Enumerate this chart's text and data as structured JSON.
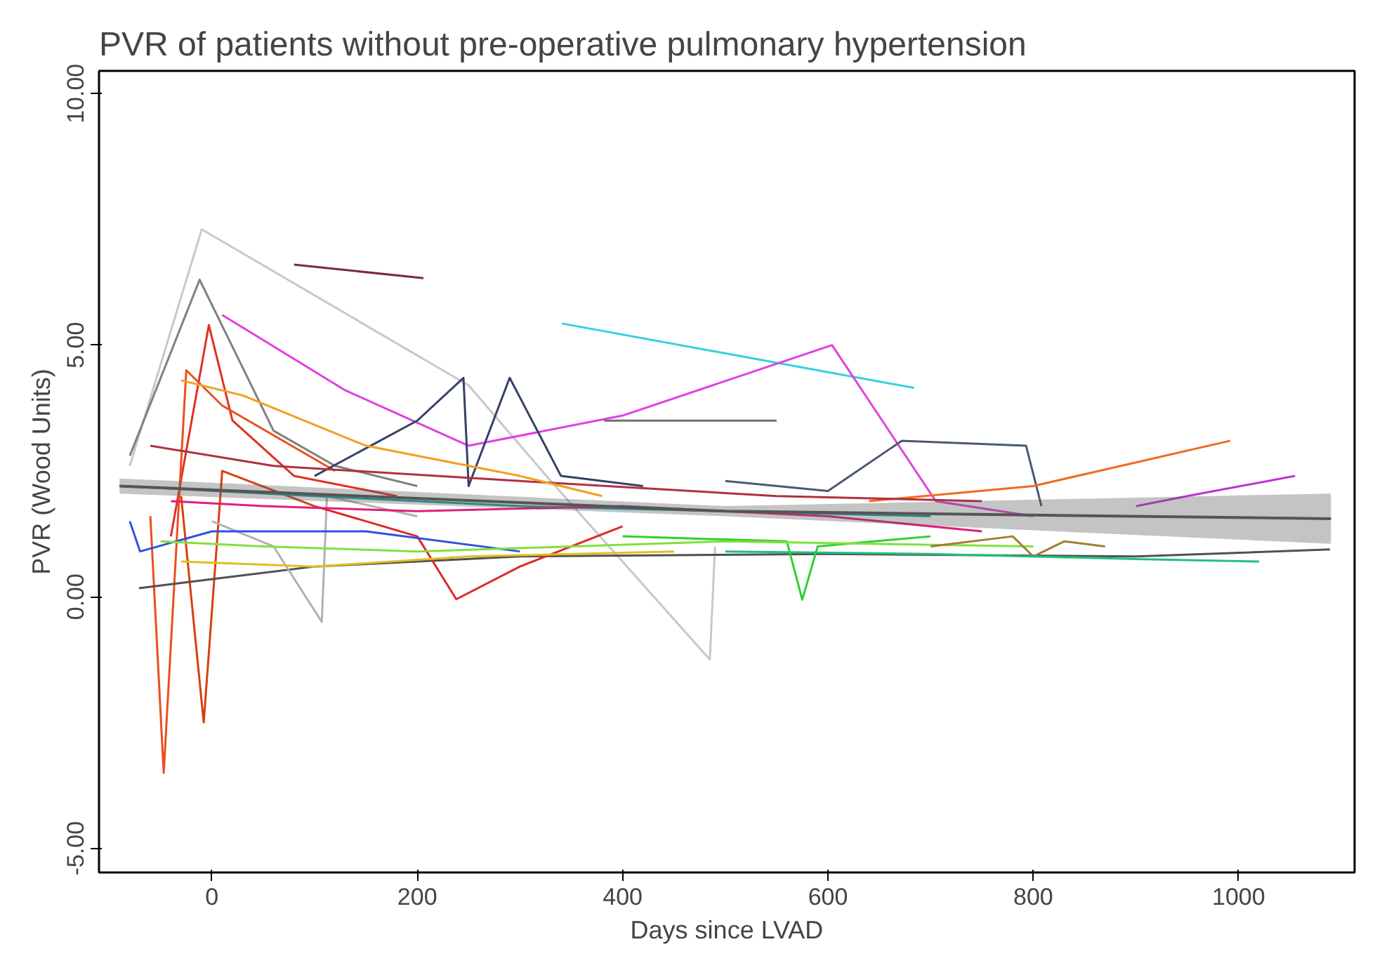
{
  "chart_data": {
    "type": "line",
    "title": "PVR of patients without pre-operative pulmonary hypertension",
    "xlabel": "Days since LVAD",
    "ylabel": "PVR (Wood Units)",
    "xlim": [
      -110,
      1113
    ],
    "ylim": [
      -5.48,
      10.45
    ],
    "xticks": [
      0,
      200,
      400,
      600,
      800,
      1000
    ],
    "yticks": [
      {
        "value": -5,
        "label": "-5.00"
      },
      {
        "value": 0,
        "label": "0.00"
      },
      {
        "value": 5,
        "label": "5.00"
      },
      {
        "value": 10,
        "label": "10.00"
      }
    ],
    "grid": false,
    "marker": "none",
    "line_style": "solid",
    "series": [
      {
        "color": "#c8c8c8",
        "x": [
          -80,
          -10,
          250,
          330,
          485,
          490
        ],
        "values": [
          2.6,
          7.3,
          4.2,
          2.3,
          -1.25,
          1.0
        ]
      },
      {
        "color": "#808080",
        "x": [
          -80,
          -12,
          60,
          120,
          200
        ],
        "values": [
          2.8,
          6.3,
          3.3,
          2.6,
          2.2
        ]
      },
      {
        "color": "#7a2a3a",
        "x": [
          80,
          206
        ],
        "values": [
          6.6,
          6.33
        ]
      },
      {
        "color": "#33d0e0",
        "x": [
          341,
          684
        ],
        "values": [
          5.43,
          4.15
        ]
      },
      {
        "color": "#e040e0",
        "x": [
          10,
          130,
          250,
          400,
          604,
          705,
          800
        ],
        "values": [
          5.6,
          4.1,
          3.0,
          3.6,
          5.0,
          1.9,
          1.6
        ]
      },
      {
        "color": "#e03020",
        "x": [
          -40,
          -3,
          20,
          80,
          180
        ],
        "values": [
          1.2,
          5.4,
          3.5,
          2.4,
          2.0
        ]
      },
      {
        "color": "#e85020",
        "x": [
          -60,
          -47,
          -25,
          10,
          120
        ],
        "values": [
          1.6,
          -3.5,
          4.5,
          3.8,
          2.5
        ]
      },
      {
        "color": "#d84010",
        "x": [
          -30,
          -8,
          10,
          100
        ],
        "values": [
          2.0,
          -2.5,
          2.5,
          1.8
        ]
      },
      {
        "color": "#707070",
        "x": [
          382,
          550
        ],
        "values": [
          3.5,
          3.5
        ]
      },
      {
        "color": "#34406a",
        "x": [
          100,
          200,
          245,
          250,
          290,
          340,
          420
        ],
        "values": [
          2.4,
          3.5,
          4.35,
          2.2,
          4.35,
          2.4,
          2.2
        ]
      },
      {
        "color": "#4a5a70",
        "x": [
          500,
          600,
          672,
          793,
          808
        ],
        "values": [
          2.3,
          2.1,
          3.1,
          3.0,
          1.8
        ]
      },
      {
        "color": "#f06a20",
        "x": [
          640,
          800,
          992
        ],
        "values": [
          1.9,
          2.2,
          3.1
        ]
      },
      {
        "color": "#c030d0",
        "x": [
          900,
          950,
          1055
        ],
        "values": [
          1.8,
          2.0,
          2.4
        ]
      },
      {
        "color": "#505050",
        "x": [
          -71,
          20,
          100,
          300,
          600,
          900,
          1089
        ],
        "values": [
          0.17,
          0.4,
          0.6,
          0.8,
          0.85,
          0.8,
          0.94
        ]
      },
      {
        "color": "#30d030",
        "x": [
          400,
          560,
          575,
          590,
          700
        ],
        "values": [
          1.2,
          1.1,
          -0.06,
          1.0,
          1.2
        ]
      },
      {
        "color": "#b0b0b0",
        "x": [
          0,
          60,
          107,
          112,
          200
        ],
        "values": [
          1.5,
          1.0,
          -0.5,
          2.0,
          1.6
        ]
      },
      {
        "color": "#e02828",
        "x": [
          100,
          200,
          238,
          300,
          400
        ],
        "values": [
          1.8,
          1.2,
          -0.05,
          0.6,
          1.4
        ]
      },
      {
        "color": "#20a0a0",
        "x": [
          -90,
          100,
          300,
          500,
          700
        ],
        "values": [
          2.2,
          2.0,
          1.8,
          1.7,
          1.6
        ]
      },
      {
        "color": "#e0207a",
        "x": [
          -40,
          50,
          200,
          400,
          600,
          750
        ],
        "values": [
          1.9,
          1.8,
          1.7,
          1.8,
          1.6,
          1.3
        ]
      },
      {
        "color": "#3050e0",
        "x": [
          -80,
          -70,
          0,
          150,
          300
        ],
        "values": [
          1.5,
          0.9,
          1.3,
          1.3,
          0.9
        ]
      },
      {
        "color": "#80e040",
        "x": [
          -50,
          50,
          200,
          350,
          500,
          800
        ],
        "values": [
          1.1,
          1.0,
          0.9,
          1.0,
          1.1,
          1.0
        ]
      },
      {
        "color": "#e0c020",
        "x": [
          -30,
          100,
          250,
          450
        ],
        "values": [
          0.7,
          0.6,
          0.8,
          0.9
        ]
      },
      {
        "color": "#b03040",
        "x": [
          -60,
          60,
          300,
          550,
          750
        ],
        "values": [
          3.0,
          2.6,
          2.3,
          2.0,
          1.9
        ]
      },
      {
        "color": "#a08030",
        "x": [
          700,
          780,
          800,
          830,
          870
        ],
        "values": [
          1.0,
          1.2,
          0.8,
          1.1,
          1.0
        ]
      },
      {
        "color": "#20c080",
        "x": [
          500,
          700,
          900,
          1020
        ],
        "values": [
          0.9,
          0.85,
          0.75,
          0.7
        ]
      },
      {
        "color": "#f0a020",
        "x": [
          -30,
          30,
          150,
          300,
          380
        ],
        "values": [
          4.3,
          4.0,
          3.0,
          2.4,
          2.0
        ]
      },
      {
        "color": "#555555",
        "x": [
          -90,
          500,
          1090
        ],
        "values": [
          2.2,
          1.7,
          1.55
        ],
        "lower": [
          2.05,
          1.6,
          1.05
        ],
        "upper": [
          2.35,
          1.8,
          2.05
        ]
      }
    ]
  }
}
